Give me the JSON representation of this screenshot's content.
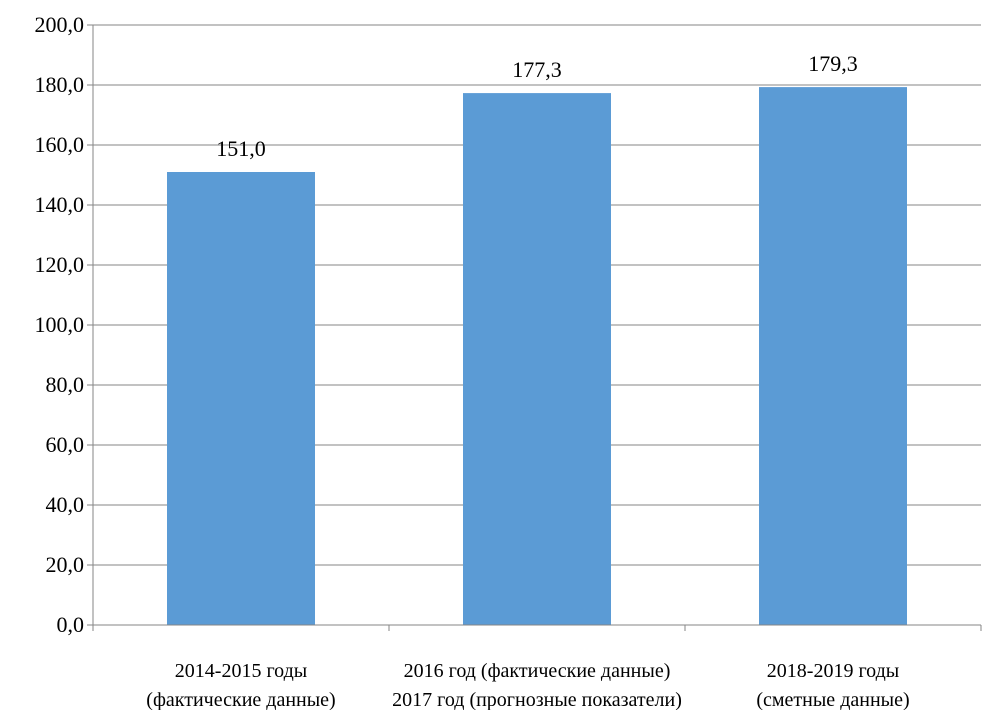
{
  "chart_data": {
    "type": "bar",
    "categories": [
      [
        "2014-2015 годы",
        "(фактические данные)"
      ],
      [
        "2016 год (фактические данные)",
        "2017 год (прогнозные показатели)"
      ],
      [
        "2018-2019 годы",
        "(сметные данные)"
      ]
    ],
    "values": [
      151.0,
      177.3,
      179.3
    ],
    "value_labels": [
      "151,0",
      "177,3",
      "179,3"
    ],
    "ylim": [
      0,
      200
    ],
    "yticks": [
      0,
      20,
      40,
      60,
      80,
      100,
      120,
      140,
      160,
      180,
      200
    ],
    "ytick_labels": [
      "0,0",
      "20,0",
      "40,0",
      "60,0",
      "80,0",
      "100,0",
      "120,0",
      "140,0",
      "160,0",
      "180,0",
      "200,0"
    ],
    "grid": true,
    "bar_color": "#5b9bd5",
    "gridline_color": "#868686",
    "axis_color": "#868686"
  }
}
